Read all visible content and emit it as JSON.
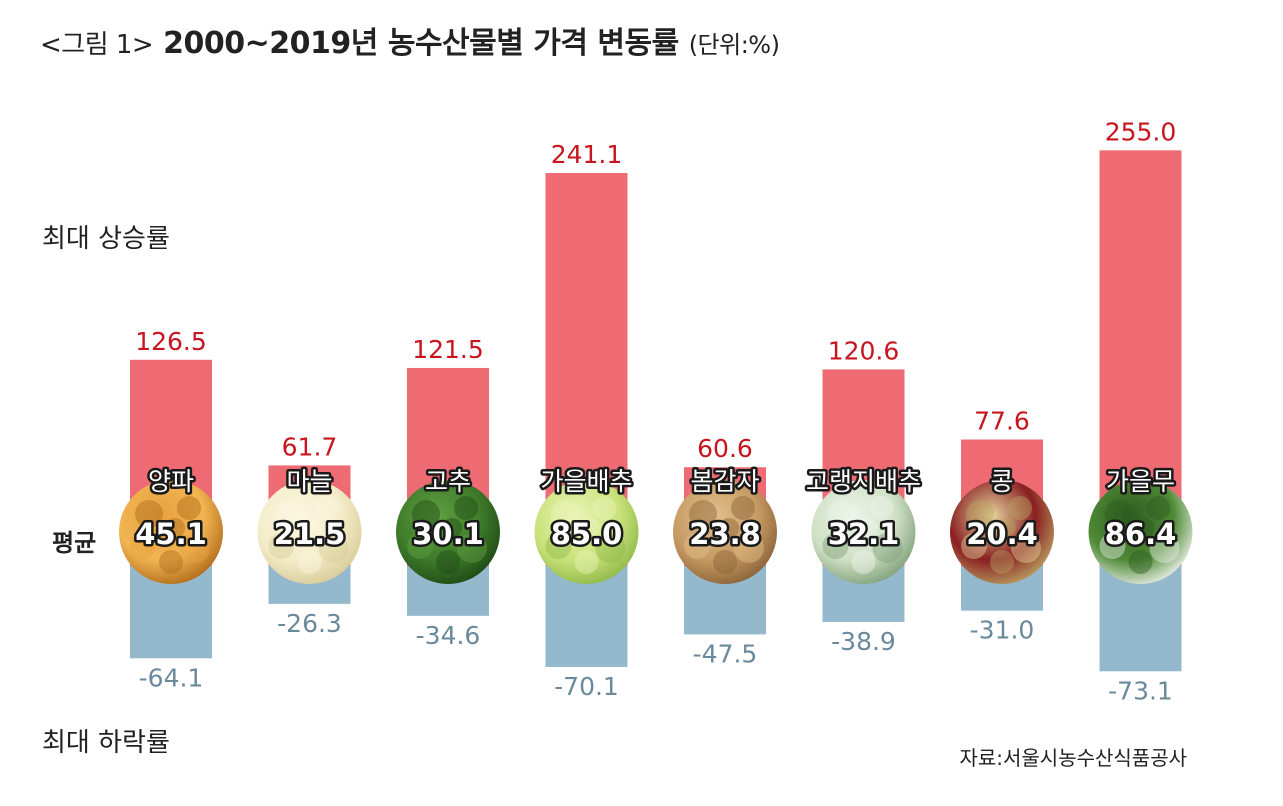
{
  "title": {
    "prefix": "<그림 1>",
    "main": "2000~2019년 농수산물별 가격 변동률",
    "unit": "(단위:%)"
  },
  "labels": {
    "max_rise": "최대 상승률",
    "average": "평균",
    "max_fall": "최대 하락률"
  },
  "source": "자료:서울시농수산식품공사",
  "colors": {
    "rise": "#ef6b73",
    "fall": "#94b8cc",
    "rise_text": "#c8141e",
    "fall_text": "#6a8a9c"
  },
  "chart_data": {
    "type": "bar",
    "categories": [
      "양파",
      "마늘",
      "고추",
      "가을배추",
      "봄감자",
      "고랭지배추",
      "콩",
      "가을무"
    ],
    "series": [
      {
        "name": "최대 상승률",
        "values": [
          126.5,
          61.7,
          121.5,
          241.1,
          60.6,
          120.6,
          77.6,
          255.0
        ]
      },
      {
        "name": "평균",
        "values": [
          45.1,
          21.5,
          30.1,
          85.0,
          23.8,
          32.1,
          20.4,
          86.4
        ]
      },
      {
        "name": "최대 하락률",
        "values": [
          -64.1,
          -26.3,
          -34.6,
          -70.1,
          -47.5,
          -38.9,
          -31.0,
          -73.1
        ]
      }
    ],
    "icons": [
      "onion-photo",
      "garlic-photo",
      "pepper-photo",
      "cabbage-photo",
      "potato-photo",
      "highland-cabbage-photo",
      "beans-photo",
      "radish-photo"
    ]
  }
}
